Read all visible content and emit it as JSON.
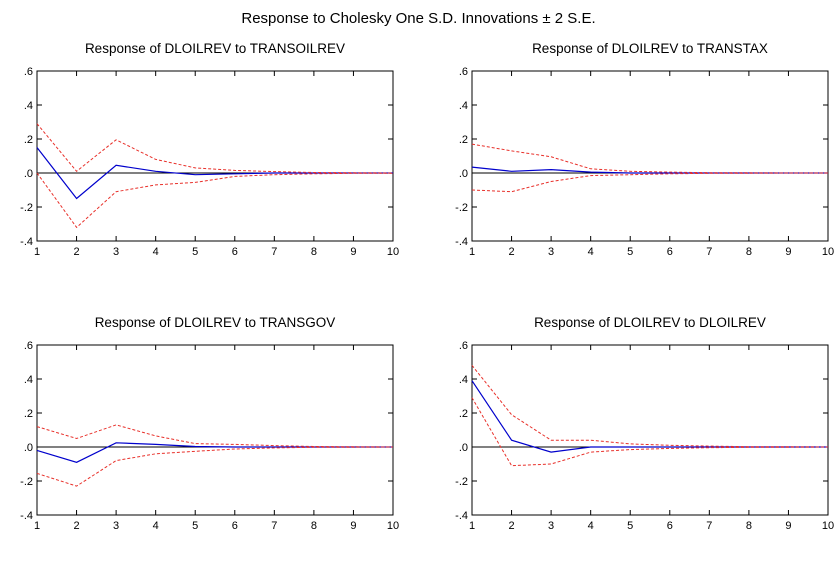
{
  "figure_title": "Response to Cholesky One S.D. Innovations ± 2 S.E.",
  "colors": {
    "response": "#0000cc",
    "bands": "#e8302a",
    "zero_line": "#000000",
    "frame": "#000000"
  },
  "chart_data": [
    {
      "type": "line",
      "title": "Response of DLOILREV to TRANSOILREV",
      "x": [
        1,
        2,
        3,
        4,
        5,
        6,
        7,
        8,
        9,
        10
      ],
      "xlabel": "",
      "ylabel": "",
      "ylim": [
        -0.4,
        0.6
      ],
      "yticks": [
        ".6",
        ".4",
        ".2",
        ".0",
        "-.2",
        "-.4"
      ],
      "ytick_values": [
        0.6,
        0.4,
        0.2,
        0.0,
        -0.2,
        -0.4
      ],
      "xticks": [
        "1",
        "2",
        "3",
        "4",
        "5",
        "6",
        "7",
        "8",
        "9",
        "10"
      ],
      "series": [
        {
          "role": "response",
          "values": [
            0.15,
            -0.15,
            0.045,
            0.01,
            -0.01,
            -0.005,
            0.0,
            0.0,
            0.0,
            0.0
          ]
        },
        {
          "role": "upper",
          "values": [
            0.29,
            0.01,
            0.195,
            0.08,
            0.03,
            0.015,
            0.008,
            0.003,
            0.001,
            0.0
          ]
        },
        {
          "role": "lower",
          "values": [
            0.0,
            -0.32,
            -0.11,
            -0.07,
            -0.055,
            -0.02,
            -0.01,
            -0.005,
            -0.002,
            -0.001
          ]
        }
      ]
    },
    {
      "type": "line",
      "title": "Response of DLOILREV to TRANSTAX",
      "x": [
        1,
        2,
        3,
        4,
        5,
        6,
        7,
        8,
        9,
        10
      ],
      "xlabel": "",
      "ylabel": "",
      "ylim": [
        -0.4,
        0.6
      ],
      "yticks": [
        ".6",
        ".4",
        ".2",
        ".0",
        "-.2",
        "-.4"
      ],
      "ytick_values": [
        0.6,
        0.4,
        0.2,
        0.0,
        -0.2,
        -0.4
      ],
      "xticks": [
        "1",
        "2",
        "3",
        "4",
        "5",
        "6",
        "7",
        "8",
        "9",
        "10"
      ],
      "series": [
        {
          "role": "response",
          "values": [
            0.035,
            0.01,
            0.02,
            0.005,
            0.0,
            0.0,
            0.0,
            0.0,
            0.0,
            0.0
          ]
        },
        {
          "role": "upper",
          "values": [
            0.17,
            0.13,
            0.095,
            0.025,
            0.01,
            0.005,
            0.002,
            0.001,
            0.0,
            0.0
          ]
        },
        {
          "role": "lower",
          "values": [
            -0.1,
            -0.11,
            -0.05,
            -0.015,
            -0.01,
            -0.005,
            -0.002,
            -0.001,
            0.0,
            0.0
          ]
        }
      ]
    },
    {
      "type": "line",
      "title": "Response of DLOILREV to TRANSGOV",
      "x": [
        1,
        2,
        3,
        4,
        5,
        6,
        7,
        8,
        9,
        10
      ],
      "xlabel": "",
      "ylabel": "",
      "ylim": [
        -0.4,
        0.6
      ],
      "yticks": [
        ".6",
        ".4",
        ".2",
        ".0",
        "-.2",
        "-.4"
      ],
      "ytick_values": [
        0.6,
        0.4,
        0.2,
        0.0,
        -0.2,
        -0.4
      ],
      "xticks": [
        "1",
        "2",
        "3",
        "4",
        "5",
        "6",
        "7",
        "8",
        "9",
        "10"
      ],
      "series": [
        {
          "role": "response",
          "values": [
            -0.02,
            -0.09,
            0.025,
            0.015,
            0.003,
            0.0,
            0.0,
            0.0,
            0.0,
            0.0
          ]
        },
        {
          "role": "upper",
          "values": [
            0.12,
            0.05,
            0.13,
            0.065,
            0.02,
            0.015,
            0.008,
            0.003,
            0.001,
            0.0
          ]
        },
        {
          "role": "lower",
          "values": [
            -0.155,
            -0.23,
            -0.08,
            -0.04,
            -0.025,
            -0.012,
            -0.005,
            -0.002,
            -0.001,
            0.0
          ]
        }
      ]
    },
    {
      "type": "line",
      "title": "Response of DLOILREV to DLOILREV",
      "x": [
        1,
        2,
        3,
        4,
        5,
        6,
        7,
        8,
        9,
        10
      ],
      "xlabel": "",
      "ylabel": "",
      "ylim": [
        -0.4,
        0.6
      ],
      "yticks": [
        ".6",
        ".4",
        ".2",
        ".0",
        "-.2",
        "-.4"
      ],
      "ytick_values": [
        0.6,
        0.4,
        0.2,
        0.0,
        -0.2,
        -0.4
      ],
      "xticks": [
        "1",
        "2",
        "3",
        "4",
        "5",
        "6",
        "7",
        "8",
        "9",
        "10"
      ],
      "series": [
        {
          "role": "response",
          "values": [
            0.39,
            0.04,
            -0.03,
            0.0,
            0.0,
            0.0,
            0.0,
            0.0,
            0.0,
            0.0
          ]
        },
        {
          "role": "upper",
          "values": [
            0.48,
            0.19,
            0.04,
            0.04,
            0.018,
            0.01,
            0.005,
            0.002,
            0.001,
            0.0
          ]
        },
        {
          "role": "lower",
          "values": [
            0.29,
            -0.11,
            -0.1,
            -0.03,
            -0.015,
            -0.008,
            -0.004,
            -0.002,
            -0.001,
            0.0
          ]
        }
      ]
    }
  ]
}
